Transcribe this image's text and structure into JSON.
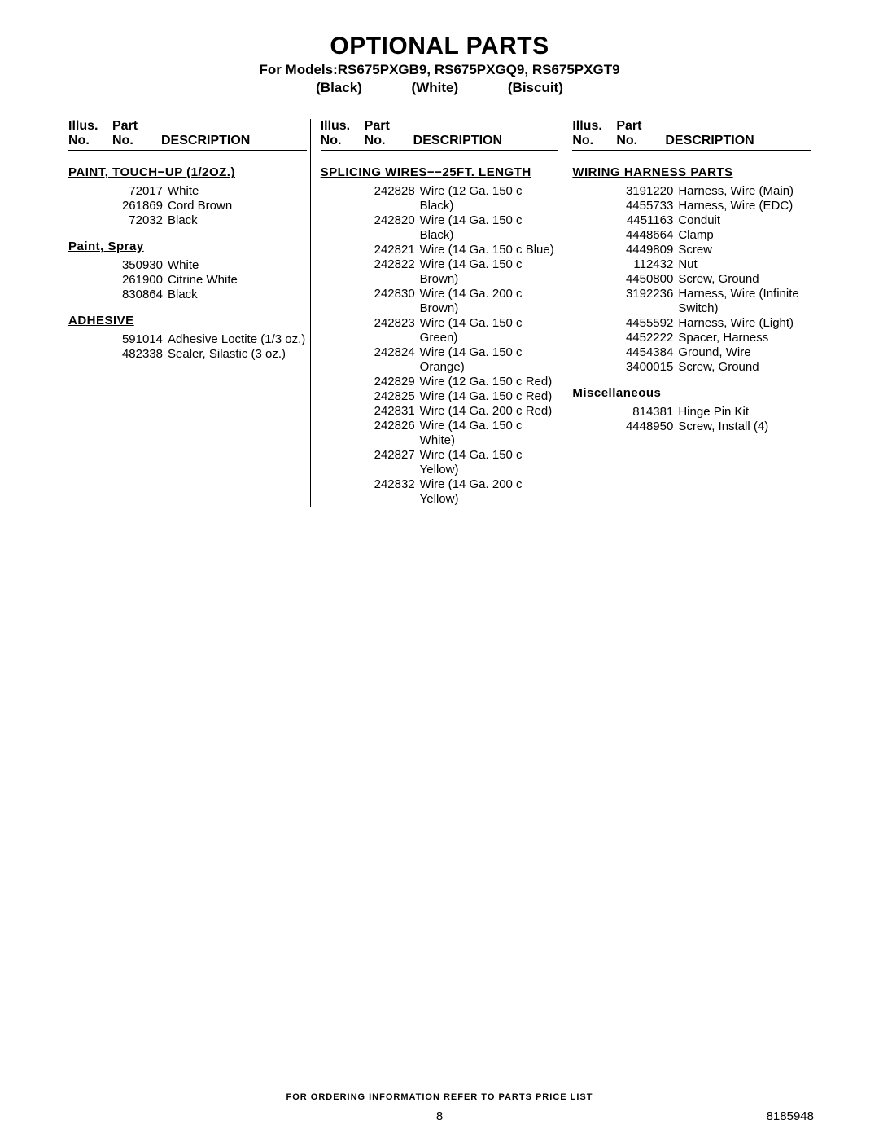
{
  "title": "OPTIONAL PARTS",
  "subtitle": "For Models:RS675PXGB9, RS675PXGQ9, RS675PXGT9",
  "color_labels": [
    "(Black)",
    "(White)",
    "(Biscuit)"
  ],
  "column_headers": {
    "illus_line1": "Illus.",
    "illus_line2": "No.",
    "part_line1": "Part",
    "part_line2": "No.",
    "desc": "DESCRIPTION"
  },
  "columns": [
    {
      "sections": [
        {
          "title": "PAINT, TOUCH−UP (1/2oz.)",
          "underline": true,
          "parts": [
            {
              "no": "72017",
              "desc": "White"
            },
            {
              "no": "261869",
              "desc": "Cord Brown"
            },
            {
              "no": "72032",
              "desc": "Black"
            }
          ]
        },
        {
          "title": "Paint, Spray",
          "underline": true,
          "mixed_case": true,
          "parts": [
            {
              "no": "350930",
              "desc": "White"
            },
            {
              "no": "261900",
              "desc": "Citrine White"
            },
            {
              "no": "830864",
              "desc": "Black"
            }
          ]
        },
        {
          "title": "ADHESIVE",
          "underline": true,
          "parts": [
            {
              "no": "591014",
              "desc": "Adhesive Loctite (1/3 oz.)"
            },
            {
              "no": "482338",
              "desc": "Sealer, Silastic (3 oz.)"
            }
          ]
        }
      ]
    },
    {
      "sections": [
        {
          "title": "SPLICING WIRES−−25FT. LENGTH",
          "underline": true,
          "parts": [
            {
              "no": "242828",
              "desc": "Wire (12 Ga. 150 c Black)"
            },
            {
              "no": "242820",
              "desc": "Wire (14 Ga. 150 c Black)"
            },
            {
              "no": "242821",
              "desc": "Wire (14 Ga. 150 c Blue)"
            },
            {
              "no": "242822",
              "desc": "Wire (14 Ga. 150 c Brown)"
            },
            {
              "no": "242830",
              "desc": "Wire (14 Ga. 200 c Brown)"
            },
            {
              "no": "242823",
              "desc": "Wire (14 Ga. 150 c Green)"
            },
            {
              "no": "242824",
              "desc": "Wire (14 Ga. 150 c Orange)"
            },
            {
              "no": "242829",
              "desc": "Wire (12 Ga. 150 c Red)"
            },
            {
              "no": "242825",
              "desc": "Wire (14 Ga. 150 c Red)"
            },
            {
              "no": "242831",
              "desc": "Wire (14 Ga. 200 c Red)"
            },
            {
              "no": "242826",
              "desc": "Wire (14 Ga. 150 c White)"
            },
            {
              "no": "242827",
              "desc": "Wire (14 Ga. 150 c Yellow)"
            },
            {
              "no": "242832",
              "desc": "Wire (14 Ga. 200 c Yellow)"
            }
          ]
        }
      ]
    },
    {
      "sections": [
        {
          "title": "WIRING HARNESS PARTS",
          "underline": true,
          "wide_pn": true,
          "parts": [
            {
              "no": "3191220",
              "desc": "Harness, Wire (Main)"
            },
            {
              "no": "4455733",
              "desc": "Harness, Wire (EDC)"
            },
            {
              "no": "4451163",
              "desc": "Conduit"
            },
            {
              "no": "4448664",
              "desc": "Clamp"
            },
            {
              "no": "4449809",
              "desc": "Screw"
            },
            {
              "no": "112432",
              "desc": "Nut"
            },
            {
              "no": "4450800",
              "desc": "Screw, Ground"
            },
            {
              "no": "3192236",
              "desc": "Harness, Wire (Infinite Switch)"
            },
            {
              "no": "4455592",
              "desc": "Harness, Wire (Light)"
            },
            {
              "no": "4452222",
              "desc": "Spacer, Harness"
            },
            {
              "no": "4454384",
              "desc": "Ground, Wire"
            },
            {
              "no": "3400015",
              "desc": "Screw, Ground"
            }
          ]
        },
        {
          "title": "Miscellaneous",
          "underline": true,
          "mixed_case": true,
          "wide_pn": true,
          "parts": [
            {
              "no": "814381",
              "desc": "Hinge Pin Kit"
            },
            {
              "no": "4448950",
              "desc": "Screw, Install (4)"
            }
          ]
        }
      ]
    }
  ],
  "footer_text": "FOR ORDERING INFORMATION REFER TO PARTS PRICE LIST",
  "page_number": "8",
  "doc_id": "8185948"
}
